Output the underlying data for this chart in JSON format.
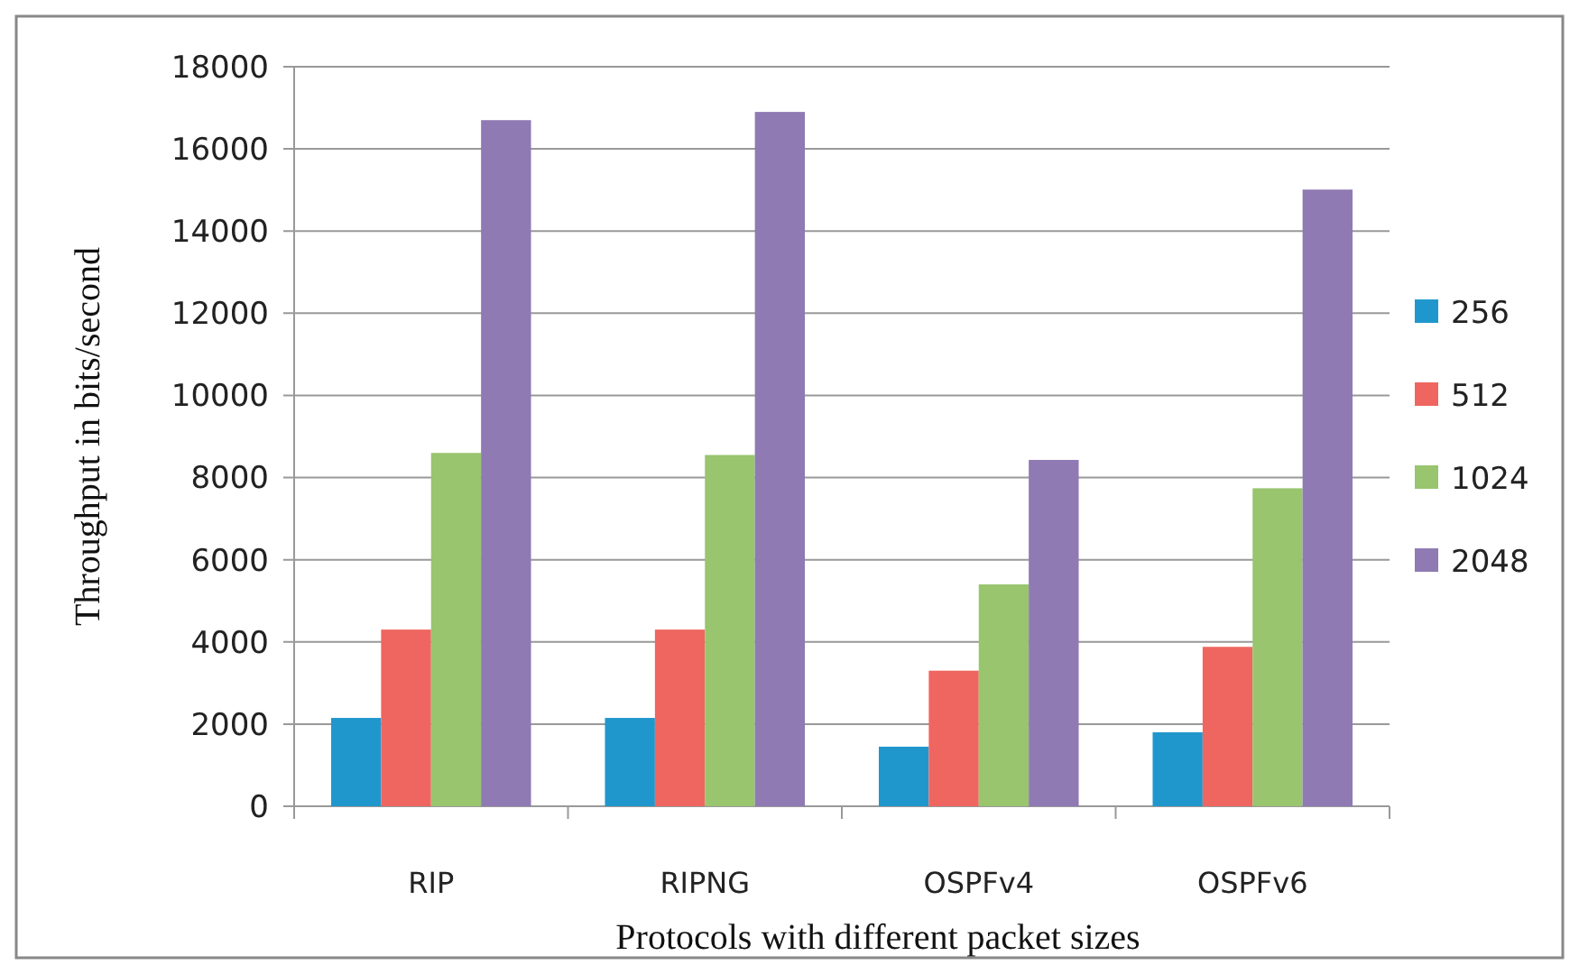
{
  "chart_data": {
    "type": "bar",
    "xlabel": "Protocols with different packet sizes",
    "ylabel": "Throughput in bits/second",
    "categories": [
      "RIP",
      "RIPNG",
      "OSPFv4",
      "OSPFv6"
    ],
    "series": [
      {
        "name": "256",
        "color": "#2097cc",
        "values": [
          2150,
          2150,
          1450,
          1800
        ]
      },
      {
        "name": "512",
        "color": "#ef6660",
        "values": [
          4300,
          4300,
          3300,
          3880
        ]
      },
      {
        "name": "1024",
        "color": "#98c56e",
        "values": [
          8600,
          8550,
          5400,
          7740
        ]
      },
      {
        "name": "2048",
        "color": "#8f7ab3",
        "values": [
          16700,
          16900,
          8430,
          15010
        ]
      }
    ],
    "ylim": [
      0,
      18000
    ],
    "yticks": [
      0,
      2000,
      4000,
      6000,
      8000,
      10000,
      12000,
      14000,
      16000,
      18000
    ],
    "grid": "y",
    "legend": "right"
  }
}
